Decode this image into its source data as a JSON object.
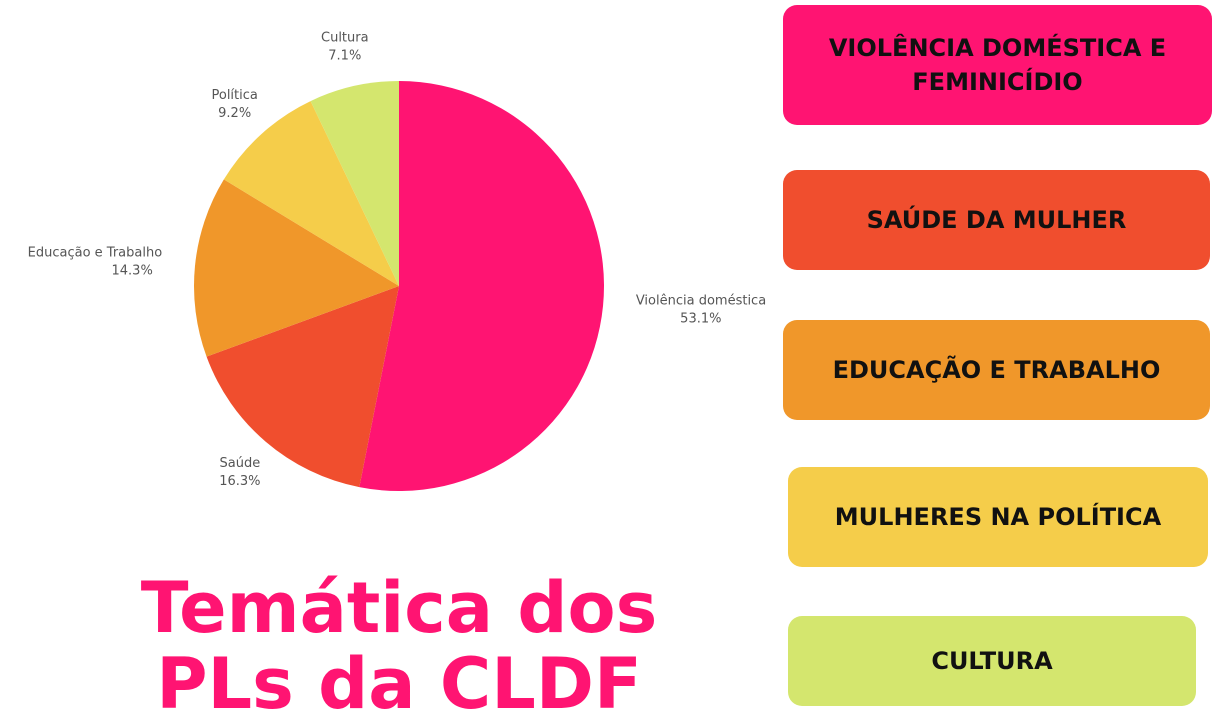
{
  "chart_data": {
    "type": "pie",
    "title": "Temática dos PLs da CLDF",
    "categories": [
      "Violência doméstica",
      "Saúde",
      "Educação e Trabalho",
      "Política",
      "Cultura"
    ],
    "values": [
      53.1,
      16.3,
      14.3,
      9.2,
      7.1
    ],
    "value_labels": [
      "53.1%",
      "16.3%",
      "14.3%",
      "9.2%",
      "7.1%"
    ],
    "colors": [
      "#ff1472",
      "#f04e2e",
      "#f0972a",
      "#f5cd4a",
      "#d4e66e"
    ]
  },
  "buttons": [
    "VIOLÊNCIA DOMÉSTICA E FEMINICÍDIO",
    "SAÚDE DA MULHER",
    "EDUCAÇÃO E TRABALHO",
    "MULHERES NA POLÍTICA",
    "CULTURA"
  ]
}
